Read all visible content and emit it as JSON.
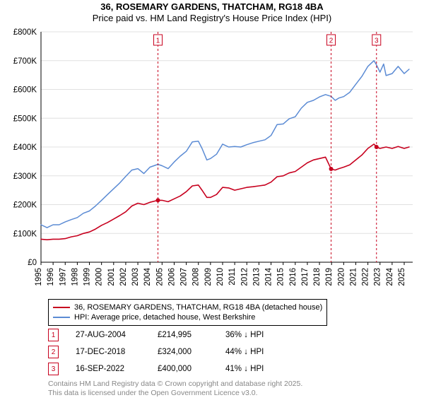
{
  "header": {
    "title": "36, ROSEMARY GARDENS, THATCHAM, RG18 4BA",
    "subtitle": "Price paid vs. HM Land Registry's House Price Index (HPI)"
  },
  "chart": {
    "type": "line",
    "background_color": "#ffffff",
    "grid_color": "#e0e0e0",
    "axis_color": "#000000",
    "title_fontsize": 13,
    "label_fontsize": 11.5,
    "x": {
      "min": 1995,
      "max": 2025.7,
      "ticks": [
        1995,
        1996,
        1997,
        1998,
        1999,
        2000,
        2001,
        2002,
        2003,
        2004,
        2005,
        2006,
        2007,
        2008,
        2009,
        2010,
        2011,
        2012,
        2013,
        2014,
        2015,
        2016,
        2017,
        2018,
        2019,
        2020,
        2021,
        2022,
        2023,
        2024,
        2025
      ],
      "tick_labels": [
        "1995",
        "1996",
        "1997",
        "1998",
        "1999",
        "2000",
        "2001",
        "2002",
        "2003",
        "2004",
        "2005",
        "2006",
        "2007",
        "2008",
        "2009",
        "2010",
        "2011",
        "2012",
        "2013",
        "2014",
        "2015",
        "2016",
        "2017",
        "2018",
        "2019",
        "2020",
        "2021",
        "2022",
        "2023",
        "2024",
        "2025"
      ],
      "tick_rotation": -90
    },
    "y": {
      "min": 0,
      "max": 800000,
      "ticks": [
        0,
        100000,
        200000,
        300000,
        400000,
        500000,
        600000,
        700000,
        800000
      ],
      "tick_labels": [
        "£0",
        "£100K",
        "£200K",
        "£300K",
        "£400K",
        "£500K",
        "£600K",
        "£700K",
        "£800K"
      ]
    },
    "series": [
      {
        "name": "36, ROSEMARY GARDENS, THATCHAM, RG18 4BA (detached house)",
        "color": "#c7001e",
        "line_width": 1.6,
        "points": [
          [
            1995.0,
            80000
          ],
          [
            1995.5,
            78000
          ],
          [
            1996.0,
            80000
          ],
          [
            1996.5,
            80000
          ],
          [
            1997.0,
            82000
          ],
          [
            1997.5,
            88000
          ],
          [
            1998.0,
            92000
          ],
          [
            1998.5,
            100000
          ],
          [
            1999.0,
            105000
          ],
          [
            1999.5,
            115000
          ],
          [
            2000.0,
            128000
          ],
          [
            2000.5,
            138000
          ],
          [
            2001.0,
            150000
          ],
          [
            2001.5,
            162000
          ],
          [
            2002.0,
            175000
          ],
          [
            2002.5,
            195000
          ],
          [
            2003.0,
            205000
          ],
          [
            2003.5,
            200000
          ],
          [
            2004.0,
            208000
          ],
          [
            2004.66,
            214995
          ],
          [
            2005.0,
            215000
          ],
          [
            2005.5,
            210000
          ],
          [
            2006.0,
            220000
          ],
          [
            2006.5,
            230000
          ],
          [
            2007.0,
            245000
          ],
          [
            2007.5,
            265000
          ],
          [
            2008.0,
            268000
          ],
          [
            2008.3,
            250000
          ],
          [
            2008.7,
            225000
          ],
          [
            2009.0,
            225000
          ],
          [
            2009.5,
            235000
          ],
          [
            2010.0,
            260000
          ],
          [
            2010.5,
            258000
          ],
          [
            2011.0,
            250000
          ],
          [
            2011.5,
            255000
          ],
          [
            2012.0,
            260000
          ],
          [
            2012.5,
            262000
          ],
          [
            2013.0,
            265000
          ],
          [
            2013.5,
            268000
          ],
          [
            2014.0,
            278000
          ],
          [
            2014.5,
            297000
          ],
          [
            2015.0,
            300000
          ],
          [
            2015.5,
            310000
          ],
          [
            2016.0,
            315000
          ],
          [
            2016.5,
            330000
          ],
          [
            2017.0,
            345000
          ],
          [
            2017.5,
            355000
          ],
          [
            2018.0,
            360000
          ],
          [
            2018.5,
            365000
          ],
          [
            2018.96,
            324000
          ],
          [
            2019.3,
            320000
          ],
          [
            2019.6,
            325000
          ],
          [
            2020.0,
            330000
          ],
          [
            2020.5,
            338000
          ],
          [
            2021.0,
            355000
          ],
          [
            2021.5,
            372000
          ],
          [
            2022.0,
            395000
          ],
          [
            2022.5,
            410000
          ],
          [
            2022.71,
            400000
          ],
          [
            2023.0,
            395000
          ],
          [
            2023.5,
            400000
          ],
          [
            2024.0,
            395000
          ],
          [
            2024.5,
            402000
          ],
          [
            2025.0,
            395000
          ],
          [
            2025.4,
            400000
          ]
        ]
      },
      {
        "name": "HPI: Average price, detached house, West Berkshire",
        "color": "#5b8bd4",
        "line_width": 1.5,
        "points": [
          [
            1995.0,
            130000
          ],
          [
            1995.5,
            120000
          ],
          [
            1996.0,
            130000
          ],
          [
            1996.5,
            130000
          ],
          [
            1997.0,
            140000
          ],
          [
            1997.5,
            148000
          ],
          [
            1998.0,
            155000
          ],
          [
            1998.5,
            170000
          ],
          [
            1999.0,
            178000
          ],
          [
            1999.5,
            195000
          ],
          [
            2000.0,
            215000
          ],
          [
            2000.5,
            235000
          ],
          [
            2001.0,
            255000
          ],
          [
            2001.5,
            275000
          ],
          [
            2002.0,
            298000
          ],
          [
            2002.5,
            320000
          ],
          [
            2003.0,
            325000
          ],
          [
            2003.5,
            308000
          ],
          [
            2004.0,
            330000
          ],
          [
            2004.66,
            340000
          ],
          [
            2005.0,
            335000
          ],
          [
            2005.5,
            325000
          ],
          [
            2006.0,
            348000
          ],
          [
            2006.5,
            368000
          ],
          [
            2007.0,
            385000
          ],
          [
            2007.5,
            418000
          ],
          [
            2008.0,
            420000
          ],
          [
            2008.3,
            395000
          ],
          [
            2008.7,
            355000
          ],
          [
            2009.0,
            360000
          ],
          [
            2009.5,
            375000
          ],
          [
            2010.0,
            410000
          ],
          [
            2010.5,
            400000
          ],
          [
            2011.0,
            402000
          ],
          [
            2011.5,
            400000
          ],
          [
            2012.0,
            408000
          ],
          [
            2012.5,
            415000
          ],
          [
            2013.0,
            420000
          ],
          [
            2013.5,
            425000
          ],
          [
            2014.0,
            440000
          ],
          [
            2014.5,
            478000
          ],
          [
            2015.0,
            480000
          ],
          [
            2015.5,
            498000
          ],
          [
            2016.0,
            505000
          ],
          [
            2016.5,
            535000
          ],
          [
            2017.0,
            555000
          ],
          [
            2017.5,
            562000
          ],
          [
            2018.0,
            574000
          ],
          [
            2018.5,
            582000
          ],
          [
            2018.96,
            576000
          ],
          [
            2019.3,
            562000
          ],
          [
            2019.6,
            570000
          ],
          [
            2020.0,
            575000
          ],
          [
            2020.5,
            590000
          ],
          [
            2021.0,
            618000
          ],
          [
            2021.5,
            645000
          ],
          [
            2022.0,
            680000
          ],
          [
            2022.5,
            700000
          ],
          [
            2022.71,
            685000
          ],
          [
            2023.0,
            660000
          ],
          [
            2023.3,
            688000
          ],
          [
            2023.5,
            648000
          ],
          [
            2024.0,
            655000
          ],
          [
            2024.5,
            680000
          ],
          [
            2025.0,
            655000
          ],
          [
            2025.4,
            670000
          ]
        ]
      }
    ],
    "event_markers": {
      "line_color": "#c7001e",
      "line_dash": "3,3",
      "box_border": "#c7001e",
      "box_text_color": "#c7001e",
      "items": [
        {
          "n": "1",
          "x": 2004.66,
          "y": 214995
        },
        {
          "n": "2",
          "x": 2018.96,
          "y": 324000
        },
        {
          "n": "3",
          "x": 2022.71,
          "y": 400000
        }
      ]
    }
  },
  "legend": {
    "items": [
      {
        "color": "#c7001e",
        "label": "36, ROSEMARY GARDENS, THATCHAM, RG18 4BA (detached house)"
      },
      {
        "color": "#5b8bd4",
        "label": "HPI: Average price, detached house, West Berkshire"
      }
    ]
  },
  "events": [
    {
      "n": "1",
      "date": "27-AUG-2004",
      "price": "£214,995",
      "hpi": "36% ↓ HPI"
    },
    {
      "n": "2",
      "date": "17-DEC-2018",
      "price": "£324,000",
      "hpi": "44% ↓ HPI"
    },
    {
      "n": "3",
      "date": "16-SEP-2022",
      "price": "£400,000",
      "hpi": "41% ↓ HPI"
    }
  ],
  "credit": {
    "line1": "Contains HM Land Registry data © Crown copyright and database right 2025.",
    "line2": "This data is licensed under the Open Government Licence v3.0."
  }
}
